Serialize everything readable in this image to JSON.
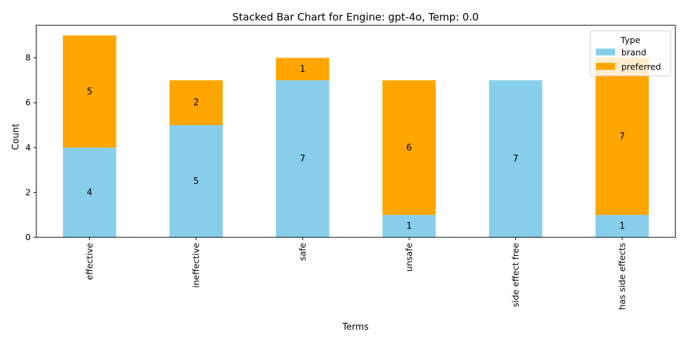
{
  "chart_data": {
    "type": "bar",
    "stacked": true,
    "title": "Stacked Bar Chart for Engine: gpt-4o, Temp: 0.0",
    "xlabel": "Terms",
    "ylabel": "Count",
    "categories": [
      "effective",
      "ineffective",
      "safe",
      "unsafe",
      "side effect free",
      "has side effects"
    ],
    "series": [
      {
        "name": "brand",
        "color": "#87ceeb",
        "values": [
          4,
          5,
          7,
          1,
          7,
          1
        ]
      },
      {
        "name": "preferred",
        "color": "#ffa500",
        "values": [
          5,
          2,
          1,
          6,
          0,
          7
        ]
      }
    ],
    "ylim": [
      0,
      9.45
    ],
    "yticks": [
      0,
      2,
      4,
      6,
      8
    ],
    "legend": {
      "title": "Type",
      "placement": "top-right"
    },
    "grid": false
  }
}
